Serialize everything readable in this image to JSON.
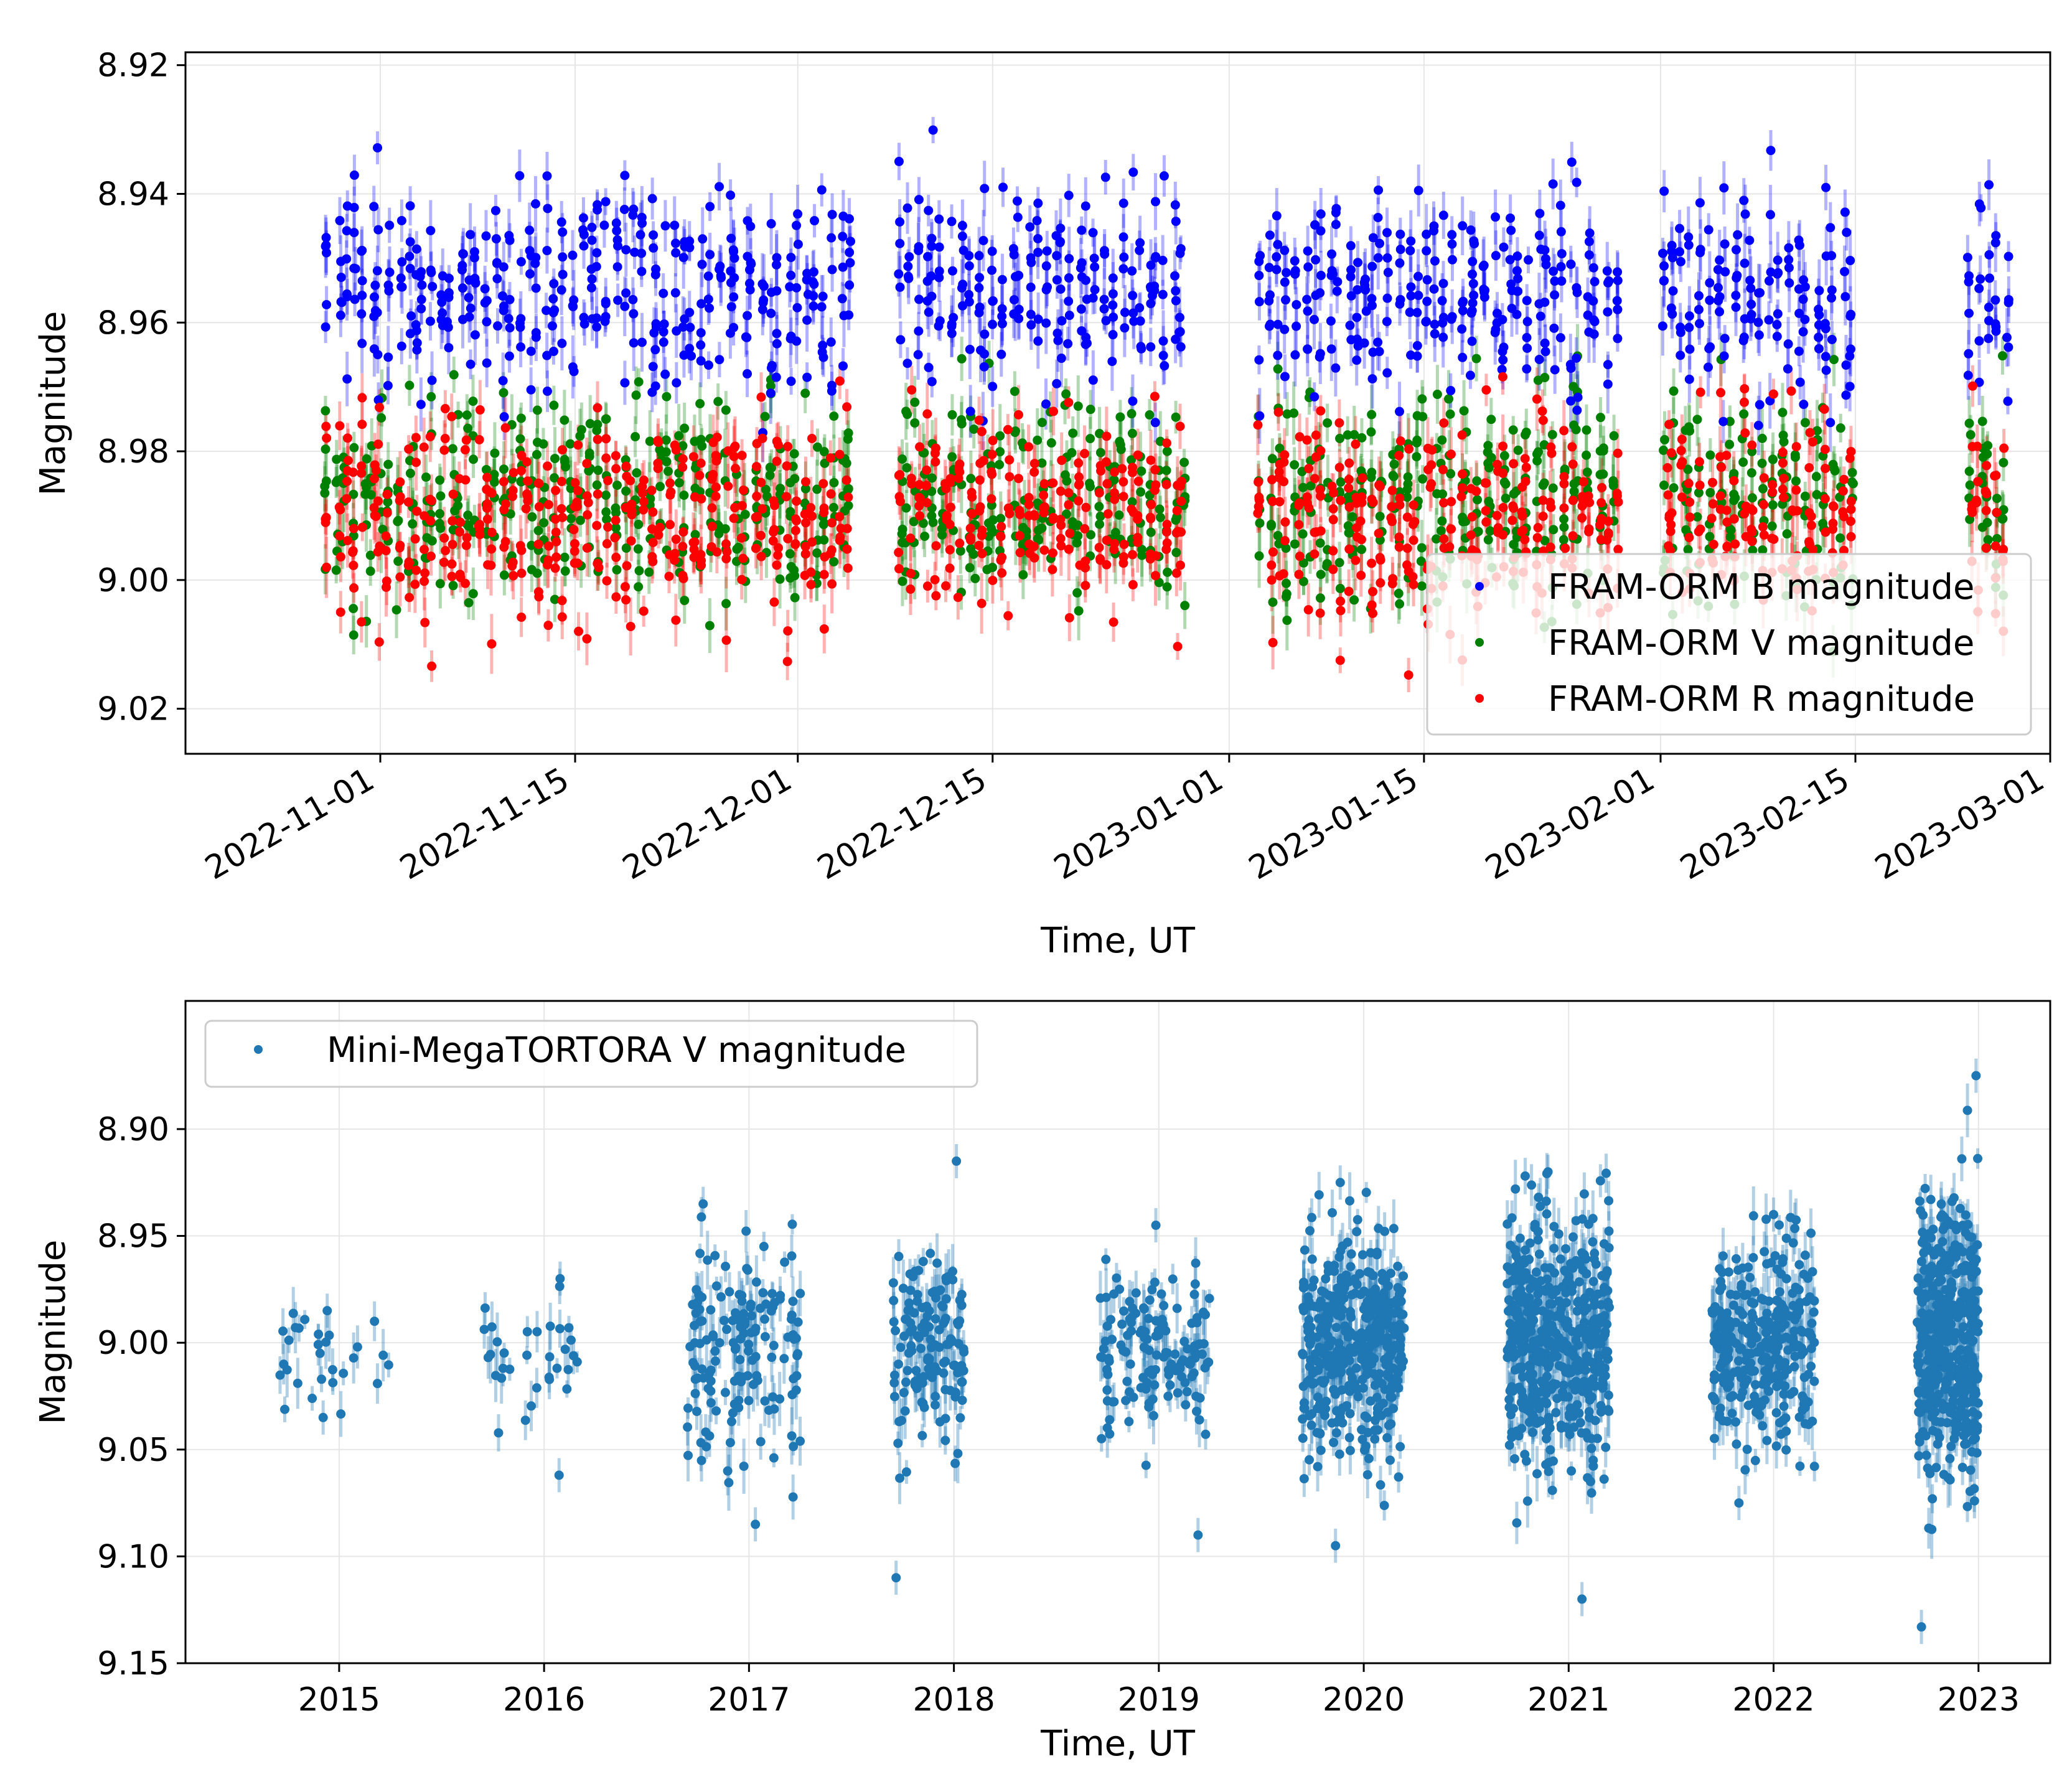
{
  "chart_data": [
    {
      "type": "scatter",
      "xlabel": "Time, UT",
      "ylabel": "Magnitude",
      "y_inverted": true,
      "ylim": [
        9.027,
        8.918
      ],
      "xlim": [
        "2022-10-18",
        "2023-03-01"
      ],
      "x_ticks": [
        "2022-11-01",
        "2022-11-15",
        "2022-12-01",
        "2022-12-15",
        "2023-01-01",
        "2023-01-15",
        "2023-02-01",
        "2023-02-15",
        "2023-03-01"
      ],
      "y_ticks": [
        "8.92",
        "8.94",
        "8.96",
        "8.98",
        "9.00",
        "9.02"
      ],
      "legend_position": "lower-right",
      "grid": true,
      "observing_windows": [
        {
          "start": "2022-10-28",
          "end": "2022-12-05"
        },
        {
          "start": "2022-12-08",
          "end": "2022-12-29"
        },
        {
          "start": "2023-01-03",
          "end": "2023-01-29"
        },
        {
          "start": "2023-02-01",
          "end": "2023-02-15"
        },
        {
          "start": "2023-02-23",
          "end": "2023-02-26"
        }
      ],
      "series": [
        {
          "name": "FRAM-ORM B magnitude",
          "color": "#0000ff",
          "mean": 8.955,
          "scatter": 0.008,
          "min": 8.928,
          "max": 8.978,
          "n_points_approx": 950
        },
        {
          "name": "FRAM-ORM V magnitude",
          "color": "#008000",
          "mean": 8.988,
          "scatter": 0.008,
          "min": 8.965,
          "max": 9.012,
          "n_points_approx": 950
        },
        {
          "name": "FRAM-ORM R magnitude",
          "color": "#ff0000",
          "mean": 8.99,
          "scatter": 0.008,
          "min": 8.968,
          "max": 9.015,
          "n_points_approx": 950
        }
      ]
    },
    {
      "type": "scatter",
      "xlabel": "Time, UT",
      "ylabel": "Magnitude",
      "y_inverted": true,
      "ylim": [
        9.15,
        8.84
      ],
      "xlim": [
        2014.25,
        2023.35
      ],
      "x_ticks": [
        "2015",
        "2016",
        "2017",
        "2018",
        "2019",
        "2020",
        "2021",
        "2022",
        "2023"
      ],
      "y_ticks": [
        "8.90",
        "8.95",
        "9.00",
        "9.05",
        "9.10",
        "9.15"
      ],
      "legend_position": "upper-left",
      "grid": true,
      "series": [
        {
          "name": "Mini-MegaTORTORA V magnitude",
          "color": "#1f77b4",
          "seasons": [
            {
              "start": 2014.7,
              "end": 2015.25,
              "mean": 9.005,
              "scatter": 0.012,
              "min": 8.985,
              "max": 9.035,
              "n": 28
            },
            {
              "start": 2015.7,
              "end": 2016.2,
              "mean": 9.01,
              "scatter": 0.02,
              "min": 8.97,
              "max": 9.062,
              "n": 32
            },
            {
              "start": 2016.7,
              "end": 2017.25,
              "mean": 9.005,
              "scatter": 0.025,
              "min": 8.935,
              "max": 9.085,
              "n": 150
            },
            {
              "start": 2017.7,
              "end": 2018.05,
              "mean": 9.002,
              "scatter": 0.022,
              "min": 8.915,
              "max": 9.11,
              "n": 140
            },
            {
              "start": 2018.7,
              "end": 2019.25,
              "mean": 9.005,
              "scatter": 0.02,
              "min": 8.945,
              "max": 9.09,
              "n": 140
            },
            {
              "start": 2019.7,
              "end": 2020.2,
              "mean": 9.0,
              "scatter": 0.025,
              "min": 8.925,
              "max": 9.095,
              "n": 420
            },
            {
              "start": 2020.7,
              "end": 2021.2,
              "mean": 8.998,
              "scatter": 0.028,
              "min": 8.92,
              "max": 9.12,
              "n": 480
            },
            {
              "start": 2021.7,
              "end": 2022.2,
              "mean": 9.002,
              "scatter": 0.024,
              "min": 8.94,
              "max": 9.075,
              "n": 300
            },
            {
              "start": 2022.7,
              "end": 2023.0,
              "mean": 9.0,
              "scatter": 0.03,
              "min": 8.875,
              "max": 9.133,
              "n": 420
            }
          ]
        }
      ]
    }
  ]
}
